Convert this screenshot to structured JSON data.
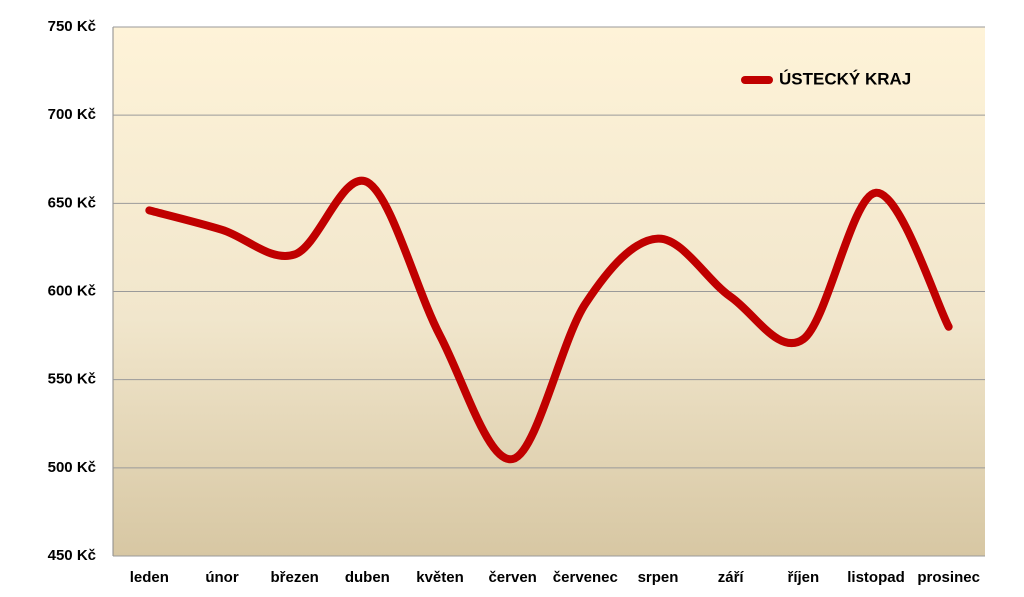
{
  "chart_data": {
    "type": "line",
    "categories": [
      "leden",
      "únor",
      "březen",
      "duben",
      "květen",
      "červen",
      "červenec",
      "srpen",
      "září",
      "říjen",
      "listopad",
      "prosinec"
    ],
    "series": [
      {
        "name": "ÚSTECKÝ KRAJ",
        "color": "#c00000",
        "values": [
          646,
          635,
          621,
          662,
          575,
          505,
          593,
          630,
          597,
          573,
          656,
          580
        ]
      }
    ],
    "ylim": [
      450,
      750
    ],
    "yticks": [
      {
        "value": 450,
        "label": "450 Kč"
      },
      {
        "value": 500,
        "label": "500 Kč"
      },
      {
        "value": 550,
        "label": "550 Kč"
      },
      {
        "value": 600,
        "label": "600 Kč"
      },
      {
        "value": 650,
        "label": "650 Kč"
      },
      {
        "value": 700,
        "label": "700 Kč"
      },
      {
        "value": 750,
        "label": "750 Kč"
      }
    ],
    "grid": true,
    "smooth": true,
    "legend": "top-right"
  }
}
